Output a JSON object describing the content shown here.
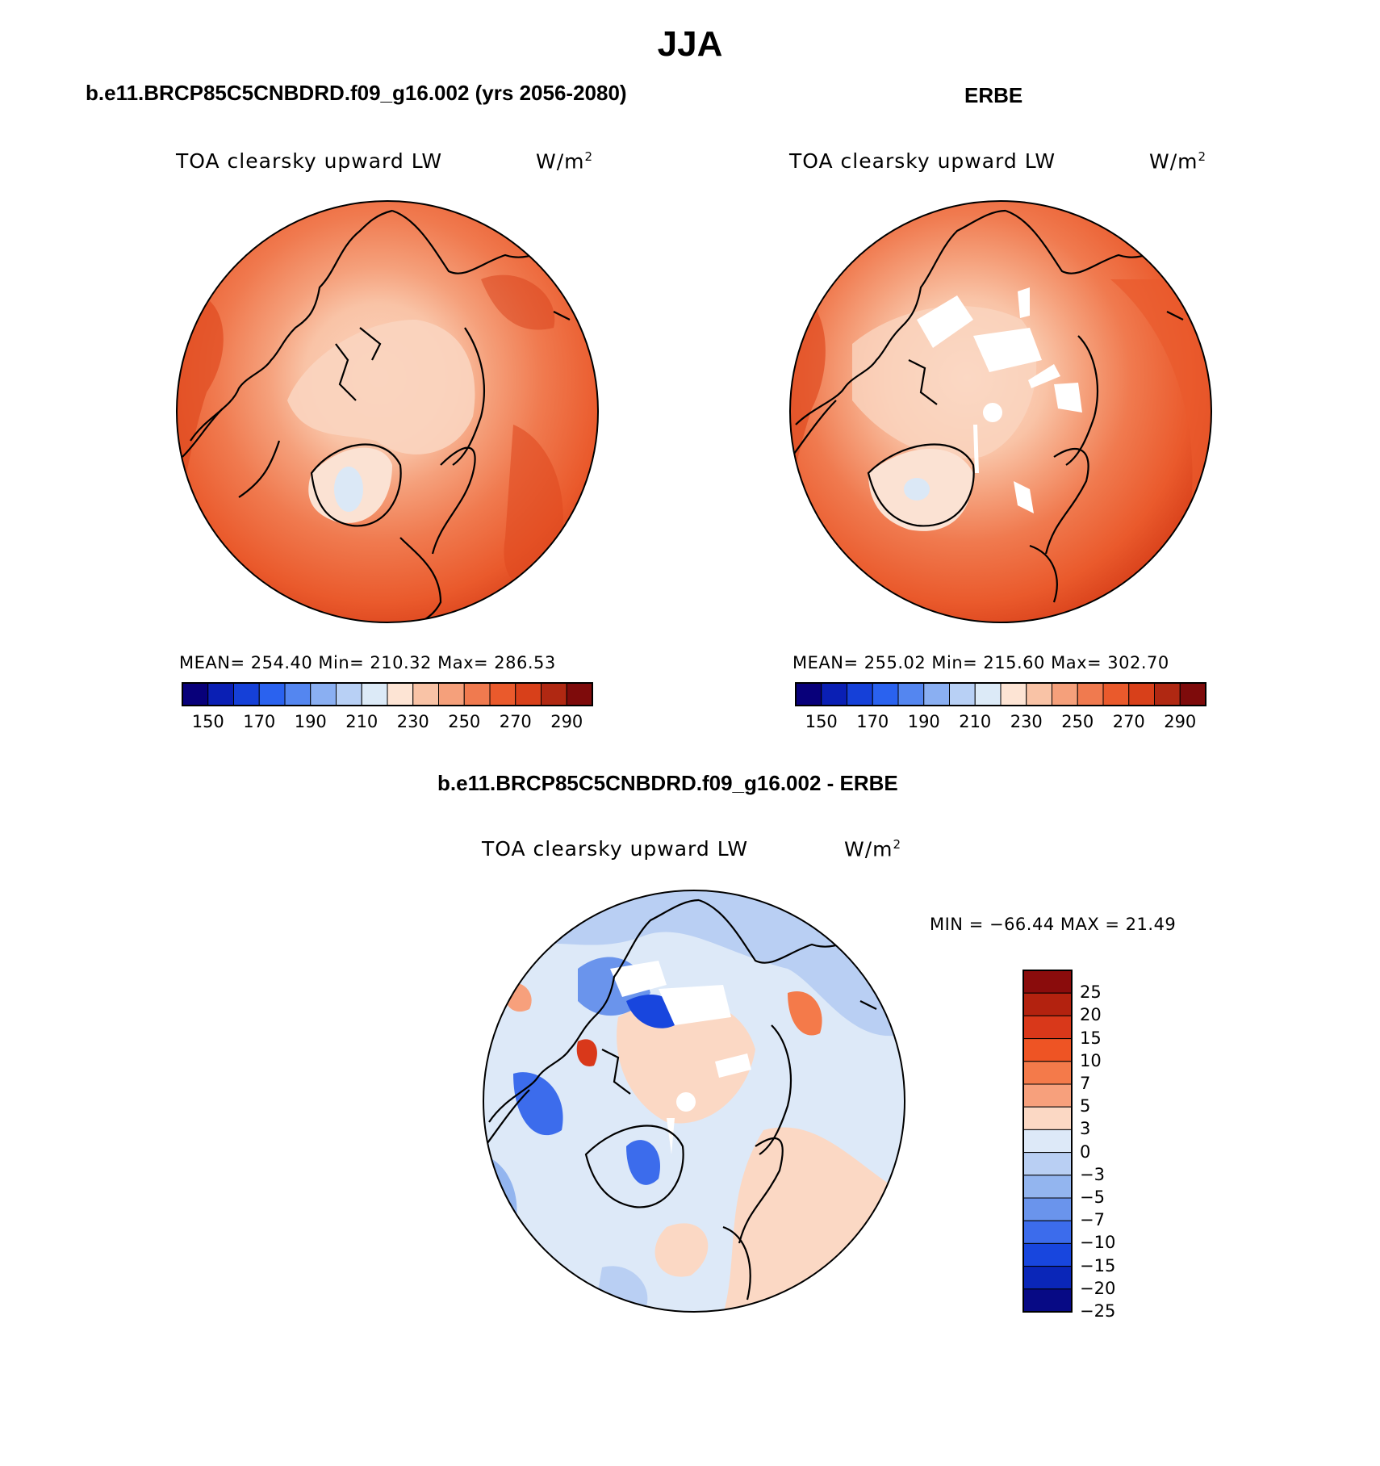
{
  "page": {
    "title": "JJA"
  },
  "panels": {
    "model": {
      "header": "b.e11.BRCP85C5CNBDRD.f09_g16.002 (yrs 2056-2080)",
      "variable_label": "TOA clearsky upward LW",
      "units": "W/m",
      "units_exp": "2",
      "stats": "MEAN= 254.40   Min= 210.32   Max= 286.53"
    },
    "obs": {
      "header": "ERBE",
      "variable_label": "TOA clearsky upward LW",
      "units": "W/m",
      "units_exp": "2",
      "stats": "MEAN= 255.02   Min= 215.60   Max= 302.70"
    },
    "diff": {
      "header": "b.e11.BRCP85C5CNBDRD.f09_g16.002 - ERBE",
      "variable_label": "TOA clearsky upward LW",
      "units": "W/m",
      "units_exp": "2",
      "stats": "MIN = −66.44  MAX =   21.49"
    }
  },
  "colorbars": {
    "absolute": {
      "colors": [
        "#08007a",
        "#0a1fb4",
        "#1540d8",
        "#2a62ef",
        "#5486f0",
        "#8aaff2",
        "#b8d0f5",
        "#dceaf7",
        "#fde4d4",
        "#f9c3a6",
        "#f5a07b",
        "#f07a4f",
        "#ea5a2c",
        "#d8401a",
        "#b02812",
        "#7e0b0b"
      ],
      "tick_labels": [
        "150",
        "170",
        "190",
        "210",
        "230",
        "250",
        "270",
        "290"
      ]
    },
    "difference": {
      "colors_top_to_bottom": [
        "#8a0c0c",
        "#b3220f",
        "#d9381a",
        "#ee5424",
        "#f47a4a",
        "#f7a07c",
        "#fbd8c4",
        "#dde9f8",
        "#b9cff3",
        "#93b5ef",
        "#6a94ec",
        "#3c6cec",
        "#1846de",
        "#0a26b8",
        "#070a85"
      ],
      "tick_labels": [
        "25",
        "20",
        "15",
        "10",
        "7",
        "5",
        "3",
        "0",
        "−3",
        "−5",
        "−7",
        "−10",
        "−15",
        "−20",
        "−25"
      ]
    }
  },
  "maps": {
    "projection": "north-polar-stereographic",
    "model_field": "orange-red, with light salmon over Arctic Ocean and Greenland",
    "obs_field": "orange-red with white missing-data wedges near pole",
    "diff_field": "mixed blue/red anomalies"
  }
}
